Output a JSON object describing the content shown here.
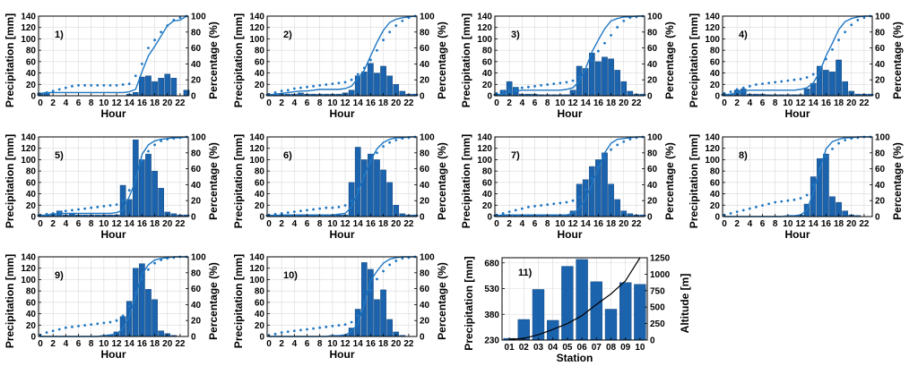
{
  "figure": {
    "colors": {
      "bar": "#1b63ad",
      "bar_edge": "#0d3d70",
      "line": "#1f77c4",
      "dots": "#1f77c4",
      "altitude": "#000000",
      "grid": "#d9d9d9"
    }
  },
  "chart_data": [
    {
      "type": "bar",
      "panel_label": "1)",
      "xlabel": "Hour",
      "ylabel": "Precipitation [mm]",
      "y2label": "Percentage (%)",
      "ylim": [
        0,
        140
      ],
      "y2lim": [
        0,
        100
      ],
      "grid": true,
      "x_ticks": [
        "0",
        "2",
        "4",
        "6",
        "8",
        "10",
        "12",
        "14",
        "16",
        "18",
        "20",
        "22"
      ],
      "y_ticks": [
        "0",
        "20",
        "40",
        "60",
        "80",
        "100",
        "120",
        "140"
      ],
      "y2_ticks": [
        "0",
        "20",
        "40",
        "60",
        "80",
        "100"
      ],
      "values": [
        5,
        5,
        0,
        0,
        0,
        0,
        0,
        0,
        0,
        0,
        0,
        0,
        0,
        0,
        3,
        6,
        33,
        35,
        25,
        31,
        38,
        31,
        0,
        10
      ],
      "series_line": [
        3,
        4,
        4,
        4,
        4,
        4,
        4,
        4,
        4,
        4,
        4,
        4,
        4,
        4,
        5,
        8,
        30,
        50,
        62,
        75,
        88,
        94,
        95,
        100
      ],
      "series_dots": [
        2,
        4,
        6,
        8,
        10,
        12,
        13,
        13,
        13,
        13,
        13,
        13,
        13,
        14,
        15,
        25,
        40,
        60,
        70,
        80,
        88,
        95,
        98,
        100
      ]
    },
    {
      "type": "bar",
      "panel_label": "2)",
      "xlabel": "Hour",
      "ylabel": "Precipitation [mm]",
      "y2label": "Percentage (%)",
      "ylim": [
        0,
        140
      ],
      "y2lim": [
        0,
        100
      ],
      "grid": true,
      "x_ticks": [
        "0",
        "2",
        "4",
        "6",
        "8",
        "10",
        "12",
        "14",
        "16",
        "18",
        "20",
        "22"
      ],
      "y_ticks": [
        "0",
        "20",
        "40",
        "60",
        "80",
        "100",
        "120",
        "140"
      ],
      "y2_ticks": [
        "0",
        "20",
        "40",
        "60",
        "80",
        "100"
      ],
      "values": [
        3,
        3,
        3,
        3,
        3,
        5,
        3,
        3,
        3,
        3,
        3,
        3,
        5,
        10,
        35,
        42,
        57,
        40,
        52,
        35,
        20,
        8,
        3,
        3
      ],
      "series_line": [
        1,
        2,
        3,
        4,
        5,
        6,
        6,
        7,
        8,
        8,
        8,
        8,
        9,
        12,
        22,
        32,
        50,
        67,
        82,
        92,
        96,
        98,
        99,
        100
      ],
      "series_dots": [
        2,
        4,
        6,
        7,
        9,
        10,
        11,
        12,
        13,
        14,
        15,
        16,
        17,
        20,
        27,
        35,
        45,
        57,
        70,
        80,
        88,
        94,
        98,
        100
      ]
    },
    {
      "type": "bar",
      "panel_label": "3)",
      "xlabel": "Hour",
      "ylabel": "Precipitation [mm]",
      "y2label": "Percentage (%)",
      "ylim": [
        0,
        140
      ],
      "y2lim": [
        0,
        100
      ],
      "grid": true,
      "x_ticks": [
        "0",
        "2",
        "4",
        "6",
        "8",
        "10",
        "12",
        "14",
        "16",
        "18",
        "20",
        "22"
      ],
      "y_ticks": [
        "0",
        "20",
        "40",
        "60",
        "80",
        "100",
        "120",
        "140"
      ],
      "y2_ticks": [
        "0",
        "20",
        "40",
        "60",
        "80",
        "100"
      ],
      "values": [
        3,
        10,
        25,
        15,
        3,
        3,
        3,
        2,
        2,
        2,
        2,
        2,
        10,
        52,
        48,
        75,
        60,
        68,
        65,
        45,
        25,
        8,
        3,
        3
      ],
      "series_line": [
        1,
        2,
        4,
        6,
        7,
        7,
        7,
        7,
        7,
        7,
        7,
        8,
        10,
        18,
        34,
        55,
        70,
        84,
        94,
        97,
        99,
        99,
        100,
        100
      ],
      "series_dots": [
        3,
        5,
        7,
        9,
        10,
        11,
        12,
        13,
        14,
        15,
        16,
        17,
        19,
        24,
        33,
        44,
        56,
        66,
        76,
        86,
        94,
        98,
        99,
        100
      ]
    },
    {
      "type": "bar",
      "panel_label": "4)",
      "xlabel": "Hour",
      "ylabel": "Precipitation [mm]",
      "y2label": "Percentage (%)",
      "ylim": [
        0,
        140
      ],
      "y2lim": [
        0,
        100
      ],
      "grid": true,
      "x_ticks": [
        "0",
        "2",
        "4",
        "6",
        "8",
        "10",
        "12",
        "14",
        "16",
        "18",
        "20",
        "22"
      ],
      "y_ticks": [
        "0",
        "20",
        "40",
        "60",
        "80",
        "100",
        "120",
        "140"
      ],
      "y2_ticks": [
        "0",
        "20",
        "40",
        "60",
        "80",
        "100"
      ],
      "values": [
        3,
        3,
        10,
        12,
        3,
        3,
        3,
        2,
        2,
        2,
        2,
        2,
        2,
        12,
        22,
        52,
        45,
        42,
        63,
        25,
        8,
        3,
        3,
        3
      ],
      "series_line": [
        1,
        2,
        4,
        6,
        7,
        7,
        7,
        7,
        7,
        7,
        7,
        7,
        8,
        10,
        16,
        30,
        50,
        66,
        83,
        93,
        97,
        99,
        100,
        100
      ],
      "series_dots": [
        3,
        5,
        8,
        10,
        12,
        14,
        15,
        16,
        17,
        18,
        19,
        20,
        21,
        23,
        27,
        35,
        46,
        58,
        70,
        80,
        89,
        95,
        98,
        100
      ]
    },
    {
      "type": "bar",
      "panel_label": "5)",
      "xlabel": "Hour",
      "ylabel": "Precipitation [mm]",
      "y2label": "Percentage (%)",
      "ylim": [
        0,
        140
      ],
      "y2lim": [
        0,
        100
      ],
      "grid": true,
      "x_ticks": [
        "0",
        "2",
        "4",
        "6",
        "8",
        "10",
        "12",
        "14",
        "16",
        "18",
        "20",
        "22"
      ],
      "y_ticks": [
        "0",
        "20",
        "40",
        "60",
        "80",
        "100",
        "120",
        "140"
      ],
      "y2_ticks": [
        "0",
        "20",
        "40",
        "60",
        "80",
        "100"
      ],
      "values": [
        3,
        3,
        5,
        10,
        3,
        5,
        3,
        3,
        3,
        3,
        3,
        3,
        3,
        55,
        30,
        135,
        100,
        110,
        80,
        50,
        8,
        5,
        3,
        3
      ],
      "series_line": [
        1,
        2,
        3,
        4,
        4,
        4,
        4,
        4,
        4,
        4,
        4,
        4,
        5,
        8,
        25,
        45,
        78,
        90,
        95,
        97,
        98,
        99,
        99,
        100
      ],
      "series_dots": [
        2,
        3,
        4,
        6,
        7,
        8,
        9,
        10,
        11,
        12,
        13,
        14,
        15,
        20,
        33,
        50,
        70,
        82,
        90,
        95,
        97,
        98,
        99,
        100
      ]
    },
    {
      "type": "bar",
      "panel_label": "6)",
      "xlabel": "Hour",
      "ylabel": "Precipitation [mm]",
      "y2label": "Percentage (%)",
      "ylim": [
        0,
        140
      ],
      "y2lim": [
        0,
        100
      ],
      "grid": true,
      "x_ticks": [
        "0",
        "2",
        "4",
        "6",
        "8",
        "10",
        "12",
        "14",
        "16",
        "18",
        "20",
        "22"
      ],
      "y_ticks": [
        "0",
        "20",
        "40",
        "60",
        "80",
        "100",
        "120",
        "140"
      ],
      "y2_ticks": [
        "0",
        "20",
        "40",
        "60",
        "80",
        "100"
      ],
      "values": [
        3,
        3,
        3,
        3,
        3,
        3,
        3,
        3,
        3,
        3,
        3,
        3,
        3,
        60,
        122,
        100,
        110,
        100,
        82,
        60,
        20,
        5,
        3,
        3
      ],
      "series_line": [
        1,
        1,
        2,
        2,
        2,
        2,
        2,
        2,
        2,
        2,
        2,
        3,
        4,
        12,
        30,
        50,
        70,
        85,
        93,
        97,
        99,
        99,
        100,
        100
      ],
      "series_dots": [
        2,
        3,
        4,
        5,
        6,
        7,
        8,
        9,
        10,
        11,
        11,
        12,
        14,
        20,
        35,
        52,
        68,
        80,
        88,
        93,
        96,
        98,
        99,
        100
      ]
    },
    {
      "type": "bar",
      "panel_label": "7)",
      "xlabel": "Hour",
      "ylabel": "Precipitation [mm]",
      "y2label": "Percentage (%)",
      "ylim": [
        0,
        140
      ],
      "y2lim": [
        0,
        100
      ],
      "grid": true,
      "x_ticks": [
        "0",
        "2",
        "4",
        "6",
        "8",
        "10",
        "12",
        "14",
        "16",
        "18",
        "20",
        "22"
      ],
      "y_ticks": [
        "0",
        "20",
        "40",
        "60",
        "80",
        "100",
        "120",
        "140"
      ],
      "y2_ticks": [
        "0",
        "20",
        "40",
        "60",
        "80",
        "100"
      ],
      "values": [
        3,
        3,
        3,
        3,
        3,
        3,
        3,
        3,
        3,
        3,
        3,
        3,
        10,
        57,
        65,
        88,
        100,
        112,
        57,
        30,
        10,
        5,
        3,
        3
      ],
      "series_line": [
        1,
        2,
        2,
        2,
        2,
        2,
        2,
        2,
        2,
        2,
        2,
        2,
        4,
        10,
        22,
        40,
        60,
        80,
        92,
        97,
        98,
        99,
        100,
        100
      ],
      "series_dots": [
        2,
        4,
        6,
        8,
        10,
        12,
        13,
        14,
        15,
        16,
        17,
        18,
        20,
        24,
        34,
        48,
        62,
        74,
        84,
        90,
        94,
        97,
        99,
        100
      ]
    },
    {
      "type": "bar",
      "panel_label": "8)",
      "xlabel": "Hour",
      "ylabel": "Precipitation [mm]",
      "y2label": "Percentage (%)",
      "ylim": [
        0,
        140
      ],
      "y2lim": [
        0,
        100
      ],
      "grid": true,
      "x_ticks": [
        "0",
        "2",
        "4",
        "6",
        "8",
        "10",
        "12",
        "14",
        "16",
        "18",
        "20",
        "22"
      ],
      "y_ticks": [
        "0",
        "20",
        "40",
        "60",
        "80",
        "100",
        "120",
        "140"
      ],
      "y2_ticks": [
        "0",
        "20",
        "40",
        "60",
        "80",
        "100"
      ],
      "values": [
        0,
        0,
        0,
        0,
        0,
        0,
        0,
        0,
        0,
        0,
        0,
        2,
        3,
        22,
        70,
        102,
        110,
        35,
        25,
        10,
        3,
        2,
        0,
        0
      ],
      "series_line": [
        0,
        0,
        0,
        0,
        0,
        0,
        0,
        0,
        0,
        0,
        1,
        1,
        2,
        8,
        30,
        58,
        85,
        94,
        97,
        99,
        99,
        100,
        100,
        100
      ],
      "series_dots": [
        2,
        4,
        6,
        8,
        10,
        12,
        14,
        16,
        18,
        19,
        20,
        21,
        23,
        27,
        40,
        60,
        75,
        85,
        92,
        96,
        98,
        99,
        100,
        100
      ]
    },
    {
      "type": "bar",
      "panel_label": "9)",
      "xlabel": "Hour",
      "ylabel": "Precipitation [mm]",
      "y2label": "Percentage (%)",
      "ylim": [
        0,
        140
      ],
      "y2lim": [
        0,
        100
      ],
      "grid": true,
      "x_ticks": [
        "0",
        "2",
        "4",
        "6",
        "8",
        "10",
        "12",
        "14",
        "16",
        "18",
        "20",
        "22"
      ],
      "y_ticks": [
        "0",
        "20",
        "40",
        "60",
        "80",
        "100",
        "120",
        "140"
      ],
      "y2_ticks": [
        "0",
        "20",
        "40",
        "60",
        "80",
        "100"
      ],
      "values": [
        0,
        0,
        0,
        0,
        0,
        0,
        0,
        0,
        0,
        0,
        2,
        3,
        8,
        35,
        62,
        120,
        128,
        83,
        65,
        10,
        5,
        2,
        0,
        0
      ],
      "series_line": [
        0,
        0,
        0,
        0,
        0,
        0,
        0,
        0,
        0,
        0,
        1,
        2,
        3,
        10,
        25,
        50,
        78,
        90,
        96,
        98,
        99,
        100,
        100,
        100
      ],
      "series_dots": [
        2,
        5,
        7,
        9,
        11,
        12,
        13,
        14,
        15,
        16,
        17,
        18,
        20,
        26,
        38,
        55,
        72,
        84,
        92,
        96,
        98,
        99,
        100,
        100
      ]
    },
    {
      "type": "bar",
      "panel_label": "10)",
      "xlabel": "Hour",
      "ylabel": "Precipitation [mm]",
      "y2label": "Percentage (%)",
      "ylim": [
        0,
        140
      ],
      "y2lim": [
        0,
        100
      ],
      "grid": true,
      "x_ticks": [
        "0",
        "2",
        "4",
        "6",
        "8",
        "10",
        "12",
        "14",
        "16",
        "18",
        "20",
        "22"
      ],
      "y_ticks": [
        "0",
        "20",
        "40",
        "60",
        "80",
        "100",
        "120",
        "140"
      ],
      "y2_ticks": [
        "0",
        "20",
        "40",
        "60",
        "80",
        "100"
      ],
      "values": [
        0,
        0,
        0,
        0,
        0,
        0,
        0,
        0,
        0,
        0,
        2,
        2,
        3,
        15,
        48,
        130,
        118,
        65,
        82,
        30,
        8,
        2,
        0,
        0
      ],
      "series_line": [
        0,
        0,
        0,
        0,
        0,
        0,
        0,
        0,
        0,
        0,
        1,
        1,
        2,
        6,
        16,
        40,
        70,
        82,
        92,
        97,
        99,
        100,
        100,
        100
      ],
      "series_dots": [
        1,
        3,
        5,
        6,
        7,
        8,
        9,
        10,
        11,
        12,
        13,
        14,
        15,
        18,
        26,
        42,
        58,
        72,
        82,
        90,
        95,
        98,
        99,
        100
      ]
    },
    {
      "type": "bar",
      "panel_label": "11)",
      "xlabel": "Station",
      "ylabel": "Precipitation [mm]",
      "y2label": "Altitude [m]",
      "ylim": [
        230,
        710
      ],
      "y2lim": [
        0,
        1250
      ],
      "grid": true,
      "categories": [
        "01",
        "02",
        "03",
        "04",
        "05",
        "06",
        "07",
        "08",
        "09",
        "10"
      ],
      "x_ticks": [
        "01",
        "02",
        "03",
        "04",
        "05",
        "06",
        "07",
        "08",
        "09",
        "10"
      ],
      "y_ticks": [
        "230",
        "380",
        "530",
        "680"
      ],
      "y2_ticks": [
        "0",
        "250",
        "500",
        "750",
        "1000",
        "1250"
      ],
      "values": [
        240,
        350,
        525,
        345,
        660,
        700,
        570,
        410,
        565,
        555
      ],
      "altitude": [
        10,
        25,
        80,
        160,
        250,
        370,
        540,
        700,
        900,
        1250
      ]
    }
  ]
}
